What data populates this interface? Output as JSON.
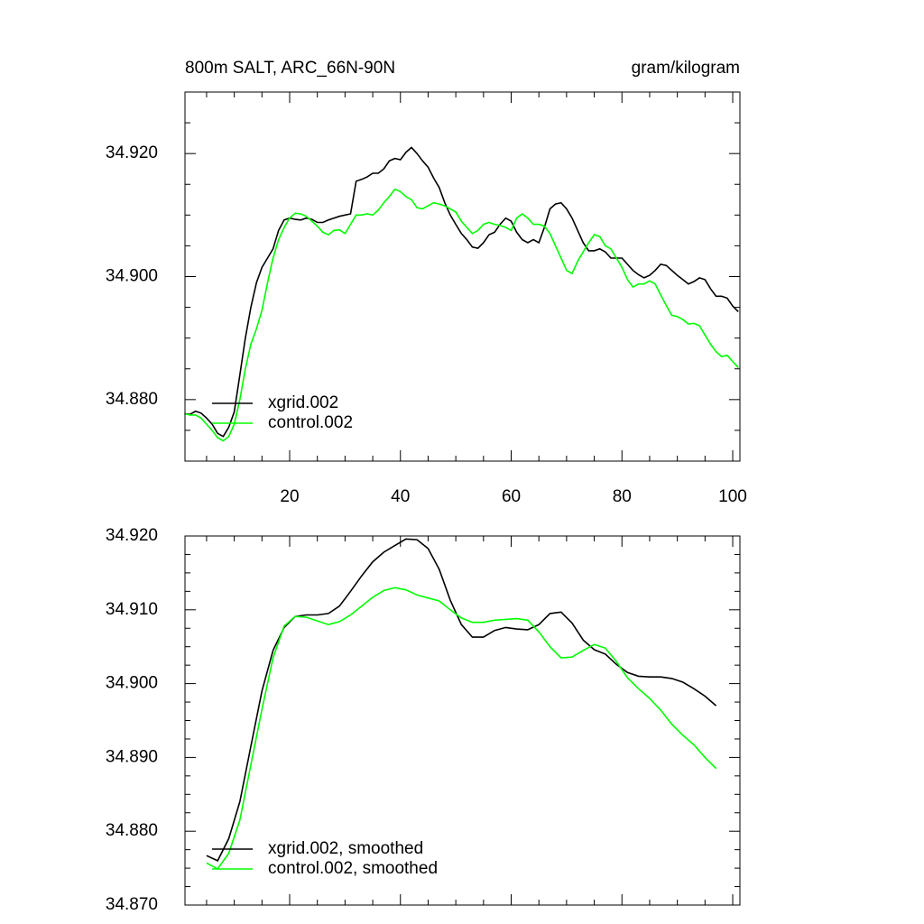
{
  "chart_data": [
    {
      "type": "line",
      "title": "800m SALT, ARC_66N-90N",
      "right_title": "gram/kilogram",
      "xlim": [
        1.1,
        101.3
      ],
      "xticks": [
        20,
        40,
        60,
        80,
        100
      ],
      "ylim": [
        34.87,
        34.93
      ],
      "yticks": [
        {
          "value": 34.88,
          "label": "34.880"
        },
        {
          "value": 34.9,
          "label": "34.900"
        },
        {
          "value": 34.92,
          "label": "34.920"
        }
      ],
      "legend": "lower left",
      "x": [
        1,
        2,
        3,
        4,
        5,
        6,
        7,
        8,
        9,
        10,
        11,
        12,
        13,
        14,
        15,
        16,
        17,
        18,
        19,
        20,
        21,
        22,
        23,
        24,
        25,
        26,
        27,
        28,
        29,
        30,
        31,
        32,
        33,
        34,
        35,
        36,
        37,
        38,
        39,
        40,
        41,
        42,
        43,
        44,
        45,
        46,
        47,
        48,
        49,
        50,
        51,
        52,
        53,
        54,
        55,
        56,
        57,
        58,
        59,
        60,
        61,
        62,
        63,
        64,
        65,
        66,
        67,
        68,
        69,
        70,
        71,
        72,
        73,
        74,
        75,
        76,
        77,
        78,
        79,
        80,
        81,
        82,
        83,
        84,
        85,
        86,
        87,
        88,
        89,
        90,
        91,
        92,
        93,
        94,
        95,
        96,
        97,
        98,
        99,
        100,
        101
      ],
      "series": [
        {
          "name": "xgrid.002",
          "color": "#000000",
          "values": [
            34.8777,
            34.8776,
            34.8781,
            34.8778,
            34.877,
            34.876,
            34.8745,
            34.874,
            34.8755,
            34.878,
            34.884,
            34.89,
            34.895,
            34.899,
            34.9015,
            34.903,
            34.9045,
            34.9075,
            34.9092,
            34.9095,
            34.9093,
            34.9092,
            34.9095,
            34.9093,
            34.9088,
            34.9088,
            34.9092,
            34.9095,
            34.9098,
            34.91,
            34.9102,
            34.9155,
            34.9158,
            34.9162,
            34.9168,
            34.9168,
            34.9175,
            34.9188,
            34.9192,
            34.919,
            34.9202,
            34.921,
            34.92,
            34.9188,
            34.9178,
            34.916,
            34.9145,
            34.912,
            34.91,
            34.9085,
            34.907,
            34.906,
            34.9048,
            34.9046,
            34.9055,
            34.9068,
            34.9072,
            34.9085,
            34.9095,
            34.909,
            34.9072,
            34.906,
            34.9055,
            34.906,
            34.9055,
            34.908,
            34.911,
            34.9118,
            34.912,
            34.911,
            34.9095,
            34.9075,
            34.9055,
            34.9042,
            34.9042,
            34.9045,
            34.904,
            34.903,
            34.903,
            34.903,
            34.902,
            34.901,
            34.9003,
            34.8998,
            34.9002,
            34.901,
            34.902,
            34.9018,
            34.901,
            34.9002,
            34.8995,
            34.8988,
            34.8992,
            34.8998,
            34.8995,
            34.898,
            34.8968,
            34.8968,
            34.8965,
            34.8952,
            34.8943
          ]
        },
        {
          "name": "control.002",
          "color": "#00ff00",
          "values": [
            34.8777,
            34.8775,
            34.8775,
            34.877,
            34.876,
            34.875,
            34.8738,
            34.8733,
            34.874,
            34.876,
            34.88,
            34.885,
            34.889,
            34.8915,
            34.8945,
            34.899,
            34.903,
            34.906,
            34.908,
            34.9095,
            34.9103,
            34.9102,
            34.9098,
            34.909,
            34.9082,
            34.9072,
            34.9068,
            34.9075,
            34.9076,
            34.907,
            34.9085,
            34.91,
            34.91,
            34.9102,
            34.91,
            34.9108,
            34.912,
            34.913,
            34.9142,
            34.9138,
            34.913,
            34.9125,
            34.9112,
            34.911,
            34.9115,
            34.912,
            34.9118,
            34.9115,
            34.911,
            34.9105,
            34.909,
            34.908,
            34.907,
            34.9075,
            34.9085,
            34.9088,
            34.9085,
            34.9083,
            34.908,
            34.9075,
            34.9095,
            34.9102,
            34.9095,
            34.9085,
            34.9085,
            34.9082,
            34.907,
            34.905,
            34.903,
            34.901,
            34.9005,
            34.9025,
            34.904,
            34.9055,
            34.9068,
            34.9065,
            34.905,
            34.9045,
            34.903,
            34.9015,
            34.8995,
            34.8983,
            34.8988,
            34.8988,
            34.8993,
            34.8988,
            34.897,
            34.8953,
            34.8937,
            34.8935,
            34.893,
            34.8923,
            34.8924,
            34.892,
            34.8905,
            34.889,
            34.8878,
            34.887,
            34.8872,
            34.8862,
            34.8852
          ]
        }
      ]
    },
    {
      "type": "line",
      "xlim": [
        1.1,
        101.3
      ],
      "xticks": [
        20,
        40,
        60,
        80,
        100
      ],
      "ylim": [
        34.87,
        34.92
      ],
      "yticks": [
        {
          "value": 34.87,
          "label": "34.870"
        },
        {
          "value": 34.88,
          "label": "34.880"
        },
        {
          "value": 34.89,
          "label": "34.890"
        },
        {
          "value": 34.9,
          "label": "34.900"
        },
        {
          "value": 34.91,
          "label": "34.910"
        },
        {
          "value": 34.92,
          "label": "34.920"
        }
      ],
      "legend": "lower left",
      "x": [
        5,
        7,
        9,
        11,
        13,
        15,
        17,
        19,
        21,
        23,
        25,
        27,
        29,
        31,
        33,
        35,
        37,
        39,
        41,
        43,
        45,
        47,
        49,
        51,
        53,
        55,
        57,
        59,
        61,
        63,
        65,
        67,
        69,
        71,
        73,
        75,
        77,
        79,
        81,
        83,
        85,
        87,
        89,
        91,
        93,
        95,
        97
      ],
      "series": [
        {
          "name": "xgrid.002, smoothed",
          "color": "#000000",
          "values": [
            34.8767,
            34.876,
            34.879,
            34.884,
            34.8915,
            34.899,
            34.9045,
            34.9076,
            34.9091,
            34.9093,
            34.9093,
            34.9095,
            34.9105,
            34.9125,
            34.9146,
            34.9165,
            34.9178,
            34.9187,
            34.9196,
            34.9195,
            34.9183,
            34.9155,
            34.9113,
            34.908,
            34.9063,
            34.9063,
            34.9072,
            34.9076,
            34.9074,
            34.9073,
            34.908,
            34.9095,
            34.9097,
            34.9082,
            34.9059,
            34.9046,
            34.904,
            34.9026,
            34.9015,
            34.901,
            34.9009,
            34.9009,
            34.9007,
            34.9002,
            34.8993,
            34.8983,
            34.897
          ]
        },
        {
          "name": "control.002, smoothed",
          "color": "#00ff00",
          "values": [
            34.8757,
            34.8749,
            34.877,
            34.8815,
            34.889,
            34.8965,
            34.9035,
            34.9078,
            34.9091,
            34.909,
            34.9085,
            34.908,
            34.9084,
            34.9093,
            34.9105,
            34.9117,
            34.9126,
            34.913,
            34.9127,
            34.912,
            34.9116,
            34.9112,
            34.91,
            34.9089,
            34.9083,
            34.9083,
            34.9086,
            34.9087,
            34.9088,
            34.9086,
            34.907,
            34.905,
            34.9035,
            34.9036,
            34.9045,
            34.9053,
            34.9048,
            34.903,
            34.9008,
            34.8993,
            34.898,
            34.8964,
            34.8945,
            34.893,
            34.8917,
            34.89,
            34.8885
          ]
        }
      ]
    }
  ]
}
